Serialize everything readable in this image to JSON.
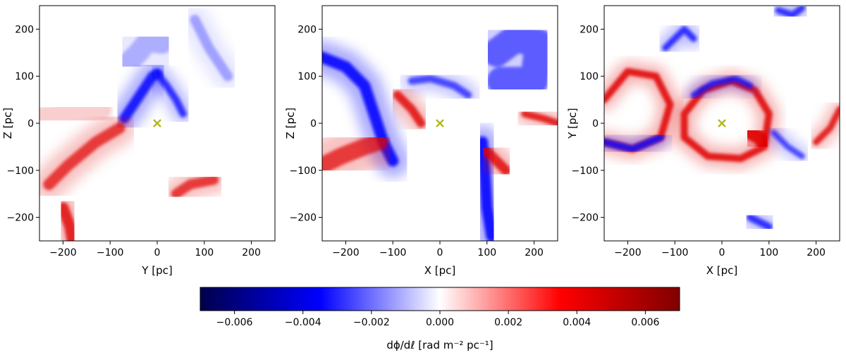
{
  "chart_data": [
    {
      "type": "heatmap",
      "title": "",
      "xlabel": "Y [pc]",
      "ylabel": "Z [pc]",
      "xlim": [
        -250,
        250
      ],
      "ylim": [
        -250,
        250
      ],
      "xticks": [
        "−200",
        "−100",
        "0",
        "100",
        "200"
      ],
      "yticks": [
        "200",
        "100",
        "0",
        "−100",
        "−200"
      ],
      "marker": {
        "x": 0,
        "y": 0,
        "symbol": "x",
        "color": "#b5b820"
      },
      "features": [
        {
          "kind": "blue",
          "points": [
            [
              -70,
              10
            ],
            [
              -50,
              40
            ],
            [
              -30,
              70
            ],
            [
              -10,
              100
            ],
            [
              0,
              105
            ]
          ],
          "width": 14,
          "opacity": 0.9
        },
        {
          "kind": "blue",
          "points": [
            [
              0,
              105
            ],
            [
              20,
              80
            ],
            [
              40,
              50
            ],
            [
              55,
              20
            ]
          ],
          "width": 10,
          "opacity": 0.8
        },
        {
          "kind": "blue",
          "points": [
            [
              -60,
              130
            ],
            [
              -40,
              150
            ],
            [
              -20,
              175
            ],
            [
              10,
              170
            ]
          ],
          "width": 30,
          "opacity": 0.25
        },
        {
          "kind": "blue",
          "points": [
            [
              80,
              220
            ],
            [
              110,
              160
            ],
            [
              150,
              100
            ]
          ],
          "width": 14,
          "opacity": 0.3
        },
        {
          "kind": "red",
          "points": [
            [
              -230,
              -130
            ],
            [
              -190,
              -90
            ],
            [
              -130,
              -40
            ],
            [
              -80,
              -10
            ]
          ],
          "width": 16,
          "opacity": 0.7
        },
        {
          "kind": "red",
          "points": [
            [
              -200,
              -180
            ],
            [
              -185,
              -220
            ],
            [
              -180,
              -250
            ]
          ],
          "width": 16,
          "opacity": 0.8
        },
        {
          "kind": "red",
          "points": [
            [
              40,
              -150
            ],
            [
              70,
              -130
            ],
            [
              120,
              -120
            ]
          ],
          "width": 14,
          "opacity": 0.7
        },
        {
          "kind": "red",
          "points": [
            [
              -250,
              10
            ],
            [
              -180,
              20
            ],
            [
              -120,
              30
            ]
          ],
          "width": 30,
          "opacity": 0.15
        }
      ]
    },
    {
      "type": "heatmap",
      "title": "",
      "xlabel": "X [pc]",
      "ylabel": "Z [pc]",
      "xlim": [
        -250,
        250
      ],
      "ylim": [
        -250,
        250
      ],
      "xticks": [
        "−200",
        "−100",
        "0",
        "100",
        "200"
      ],
      "yticks": [
        "200",
        "100",
        "0",
        "−100",
        "−200"
      ],
      "marker": {
        "x": 0,
        "y": 0,
        "symbol": "x",
        "color": "#b5b820"
      },
      "features": [
        {
          "kind": "blue",
          "points": [
            [
              -250,
              140
            ],
            [
              -200,
              120
            ],
            [
              -160,
              80
            ],
            [
              -140,
              20
            ],
            [
              -120,
              -40
            ],
            [
              -100,
              -80
            ]
          ],
          "width": 16,
          "opacity": 0.95
        },
        {
          "kind": "blue",
          "points": [
            [
              90,
              -40
            ],
            [
              95,
              -100
            ],
            [
              100,
              -180
            ],
            [
              110,
              -240
            ]
          ],
          "width": 16,
          "opacity": 0.95
        },
        {
          "kind": "blue",
          "points": [
            [
              120,
              150
            ],
            [
              160,
              180
            ],
            [
              210,
              170
            ],
            [
              200,
              90
            ],
            [
              130,
              90
            ]
          ],
          "width": 40,
          "opacity": 0.55
        },
        {
          "kind": "blue",
          "points": [
            [
              -60,
              90
            ],
            [
              -20,
              95
            ],
            [
              30,
              80
            ],
            [
              60,
              60
            ]
          ],
          "width": 10,
          "opacity": 0.7
        },
        {
          "kind": "red",
          "points": [
            [
              -250,
              -90
            ],
            [
              -210,
              -70
            ],
            [
              -160,
              -50
            ],
            [
              -130,
              -40
            ]
          ],
          "width": 24,
          "opacity": 0.7
        },
        {
          "kind": "red",
          "points": [
            [
              -90,
              60
            ],
            [
              -60,
              30
            ],
            [
              -40,
              0
            ]
          ],
          "width": 12,
          "opacity": 0.8
        },
        {
          "kind": "red",
          "points": [
            [
              100,
              -60
            ],
            [
              120,
              -80
            ],
            [
              140,
              -100
            ]
          ],
          "width": 14,
          "opacity": 0.8
        },
        {
          "kind": "red",
          "points": [
            [
              180,
              20
            ],
            [
              220,
              10
            ],
            [
              250,
              0
            ]
          ],
          "width": 10,
          "opacity": 0.8
        }
      ]
    },
    {
      "type": "heatmap",
      "title": "",
      "xlabel": "X [pc]",
      "ylabel": "Y [pc]",
      "xlim": [
        -250,
        250
      ],
      "ylim": [
        -250,
        250
      ],
      "xticks": [
        "−200",
        "−100",
        "0",
        "100",
        "200"
      ],
      "yticks": [
        "200",
        "100",
        "0",
        "−100",
        "−200"
      ],
      "marker": {
        "x": 0,
        "y": 0,
        "symbol": "x",
        "color": "#b5b820"
      },
      "features": [
        {
          "kind": "red",
          "points": [
            [
              -250,
              50
            ],
            [
              -200,
              110
            ],
            [
              -140,
              100
            ],
            [
              -110,
              40
            ],
            [
              -130,
              -30
            ],
            [
              -190,
              -55
            ],
            [
              -250,
              -40
            ]
          ],
          "width": 10,
          "opacity": 0.85
        },
        {
          "kind": "blue",
          "points": [
            [
              -250,
              -40
            ],
            [
              -190,
              -55
            ],
            [
              -130,
              -30
            ]
          ],
          "width": 9,
          "opacity": 0.85
        },
        {
          "kind": "red",
          "points": [
            [
              -80,
              20
            ],
            [
              -40,
              70
            ],
            [
              20,
              90
            ],
            [
              70,
              70
            ],
            [
              100,
              20
            ],
            [
              90,
              -50
            ],
            [
              40,
              -75
            ],
            [
              -30,
              -70
            ],
            [
              -80,
              -30
            ],
            [
              -80,
              20
            ]
          ],
          "width": 10,
          "opacity": 0.85
        },
        {
          "kind": "blue",
          "points": [
            [
              -60,
              60
            ],
            [
              -20,
              85
            ],
            [
              30,
              95
            ],
            [
              60,
              80
            ]
          ],
          "width": 8,
          "opacity": 0.8
        },
        {
          "kind": "blue",
          "points": [
            [
              -120,
              160
            ],
            [
              -80,
              200
            ],
            [
              -60,
              180
            ]
          ],
          "width": 9,
          "opacity": 0.8
        },
        {
          "kind": "red",
          "points": [
            [
              60,
              -20
            ],
            [
              80,
              -30
            ],
            [
              90,
              -45
            ]
          ],
          "width": 20,
          "opacity": 0.9
        },
        {
          "kind": "blue",
          "points": [
            [
              110,
              -20
            ],
            [
              140,
              -50
            ],
            [
              170,
              -70
            ]
          ],
          "width": 8,
          "opacity": 0.7
        },
        {
          "kind": "red",
          "points": [
            [
              200,
              -40
            ],
            [
              230,
              -10
            ],
            [
              250,
              30
            ]
          ],
          "width": 9,
          "opacity": 0.8
        },
        {
          "kind": "blue",
          "points": [
            [
              60,
              -200
            ],
            [
              80,
              -210
            ],
            [
              100,
              -220
            ]
          ],
          "width": 10,
          "opacity": 0.8
        },
        {
          "kind": "blue",
          "points": [
            [
              120,
              240
            ],
            [
              150,
              230
            ],
            [
              170,
              245
            ]
          ],
          "width": 9,
          "opacity": 0.8
        }
      ]
    }
  ],
  "colorbar": {
    "colormap": "seismic",
    "vmin": -0.007,
    "vmax": 0.007,
    "ticks": [
      "−0.006",
      "−0.004",
      "−0.002",
      "0.000",
      "0.002",
      "0.004",
      "0.006"
    ],
    "tick_values": [
      -0.006,
      -0.004,
      -0.002,
      0.0,
      0.002,
      0.004,
      0.006
    ],
    "label": "dϕ/dℓ [rad m⁻² pc⁻¹]"
  },
  "colors": {
    "blue": "#0a0aff",
    "red": "#e00000",
    "marker": "#b5b820"
  }
}
